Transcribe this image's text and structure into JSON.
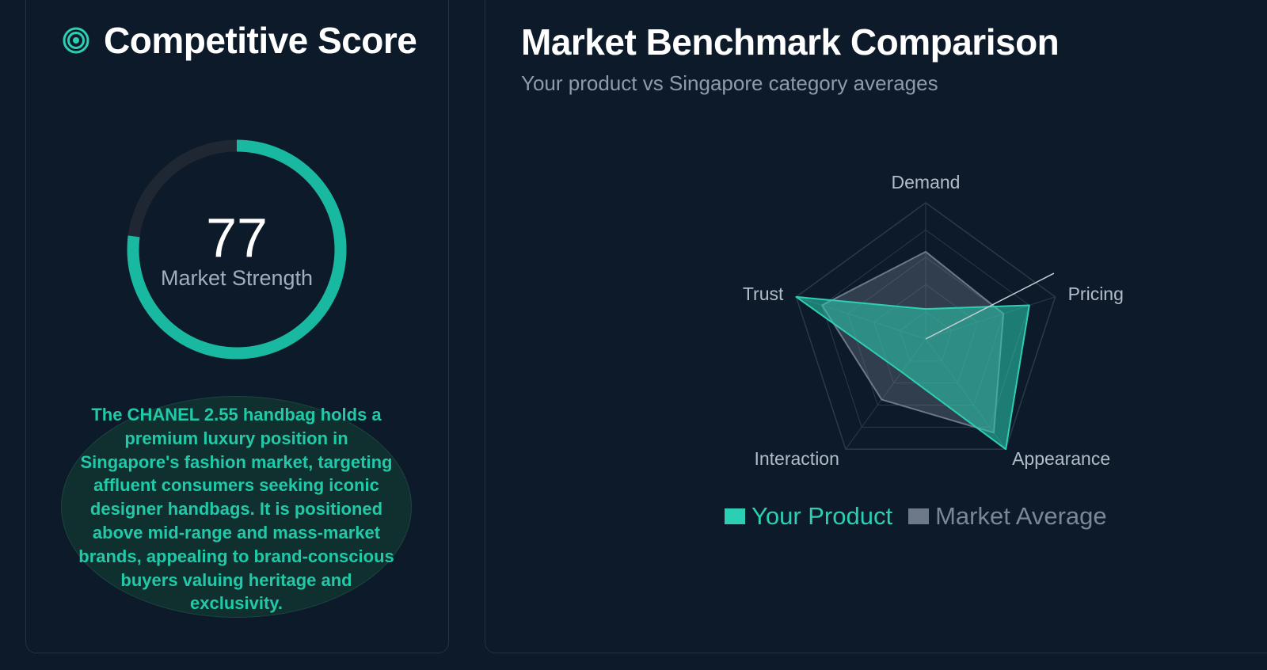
{
  "score_panel": {
    "title": "Competitive Score",
    "icon": "target-icon",
    "score": 77,
    "score_max": 100,
    "score_label": "Market Strength",
    "summary": "The CHANEL 2.55 handbag holds a premium luxury position in Singapore's fashion market, targeting affluent consumers seeking iconic designer handbags. It is positioned above mid-range and mass-market brands, appealing to brand-conscious buyers valuing heritage and exclusivity."
  },
  "benchmark_panel": {
    "title": "Market Benchmark Comparison",
    "subtitle": "Your product vs Singapore category averages"
  },
  "colors": {
    "accent": "#2ccfb4",
    "market": "#7b8797",
    "background": "#0c1a29"
  },
  "chart_data": {
    "type": "radar",
    "axes": [
      "Demand",
      "Pricing",
      "Appearance",
      "Interaction",
      "Trust"
    ],
    "series": [
      {
        "name": "Your Product",
        "values": [
          22,
          80,
          100,
          30,
          100
        ]
      },
      {
        "name": "Market Average",
        "values": [
          64,
          60,
          85,
          55,
          80
        ]
      }
    ],
    "range": [
      0,
      100
    ],
    "grid_levels": 5,
    "legend_position": "bottom"
  }
}
